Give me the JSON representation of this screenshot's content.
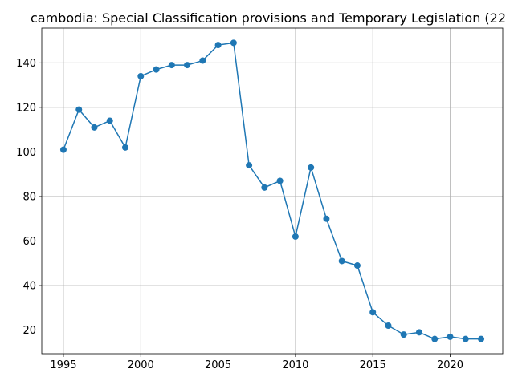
{
  "chart_data": {
    "type": "line",
    "title": "cambodia: Special Classification provisions and Temporary Legislation (22",
    "xlabel": "",
    "ylabel": "",
    "xlim": [
      1993.6,
      2023.4
    ],
    "ylim": [
      9.4,
      155.6
    ],
    "xticks": [
      1995,
      2000,
      2005,
      2010,
      2015,
      2020
    ],
    "yticks": [
      20,
      40,
      60,
      80,
      100,
      120,
      140
    ],
    "grid": true,
    "color": "#1f77b4",
    "marker": "circle",
    "series": [
      {
        "x": [
          1995,
          1996,
          1997,
          1998,
          1999,
          2000,
          2001,
          2002,
          2003,
          2004,
          2005,
          2006,
          2007,
          2008,
          2009,
          2010,
          2011,
          2012,
          2013,
          2014,
          2015,
          2016,
          2017,
          2018,
          2019,
          2020,
          2021,
          2022
        ],
        "values": [
          101,
          119,
          111,
          114,
          102,
          134,
          137,
          139,
          139,
          141,
          148,
          149,
          94,
          84,
          87,
          62,
          93,
          70,
          51,
          49,
          28,
          22,
          18,
          19,
          16,
          17,
          16,
          16
        ]
      }
    ]
  }
}
